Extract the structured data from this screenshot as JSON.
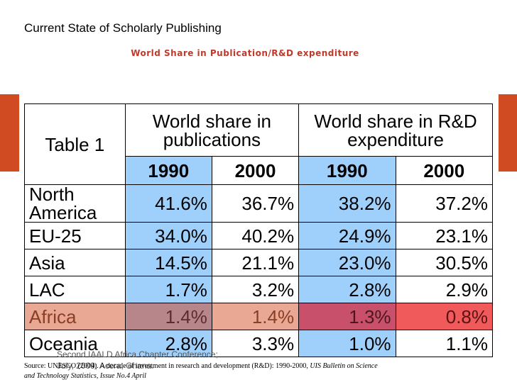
{
  "slide": {
    "title": "Current State of Scholarly Publishing",
    "subtitle": "World Share in Publication/R&D expenditure"
  },
  "table": {
    "label": "Table 1",
    "group_publications": "World share in publications",
    "group_rd": "World share in R&D expenditure",
    "years": [
      "1990",
      "2000",
      "1990",
      "2000"
    ],
    "rows": [
      {
        "region": "North America",
        "pub_1990": "41.6%",
        "pub_2000": "36.7%",
        "rd_1990": "38.2%",
        "rd_2000": "37.2%"
      },
      {
        "region": "EU-25",
        "pub_1990": "34.0%",
        "pub_2000": "40.2%",
        "rd_1990": "24.9%",
        "rd_2000": "23.1%"
      },
      {
        "region": "Asia",
        "pub_1990": "14.5%",
        "pub_2000": "21.1%",
        "rd_1990": "23.0%",
        "rd_2000": "30.5%"
      },
      {
        "region": "LAC",
        "pub_1990": "1.7%",
        "pub_2000": "3.2%",
        "rd_1990": "2.8%",
        "rd_2000": "2.9%"
      },
      {
        "region": "Africa",
        "pub_1990": "1.4%",
        "pub_2000": "1.4%",
        "rd_1990": "1.3%",
        "rd_2000": "0.8%"
      },
      {
        "region": "Oceania",
        "pub_1990": "2.8%",
        "pub_2000": "3.3%",
        "rd_1990": "1.0%",
        "rd_2000": "1.1%"
      }
    ]
  },
  "footer": {
    "line1": "Second IAALD Africa Chapter Conference;",
    "line2": "July, 2009; Accra, Ghana."
  },
  "source": {
    "prefix": "Source: UNESCO (2004). A decade of investment in research and development (R&D): 1990-2000,",
    "italic1": "UIS Bulletin on Science",
    "italic2": "and Technology Statistics, Issue No.4 April"
  },
  "colors": {
    "accent_bar": "#d04b22",
    "subtitle": "#c0392b",
    "highlight_blue": "#9fd0fb",
    "africa_row": "#e8a894",
    "africa_rd_2000": "#f05a5a"
  }
}
